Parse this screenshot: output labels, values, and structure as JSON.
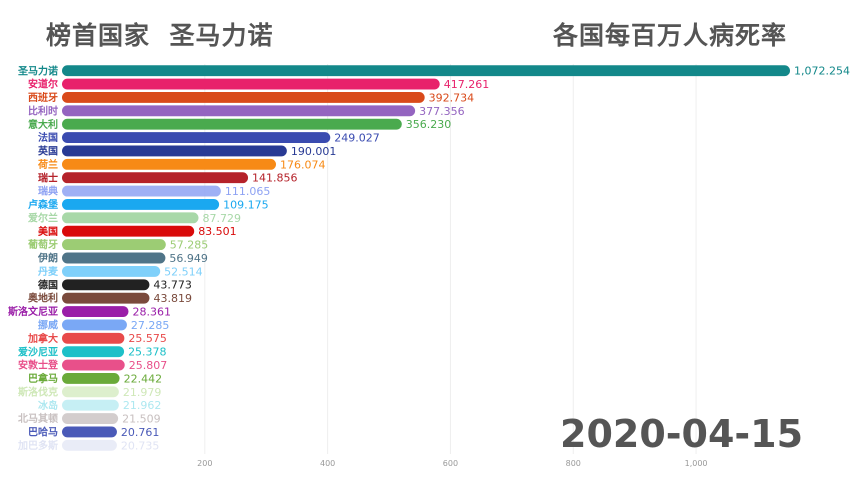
{
  "header": {
    "leader_label": "榜首国家",
    "leader_name": "圣马力诺",
    "chart_title": "各国每百万人病死率"
  },
  "date": "2020-04-15",
  "chart_data": {
    "type": "bar",
    "orientation": "horizontal",
    "title": "各国每百万人病死率",
    "xlabel": "",
    "ylabel": "",
    "x_ticks": [
      "200",
      "400",
      "600",
      "800",
      "1,000"
    ],
    "x_tick_values": [
      200,
      400,
      600,
      800,
      1000
    ],
    "grid": true,
    "bars": [
      {
        "name": "圣马力诺",
        "value": 1072.254,
        "label": "1,072.254",
        "color": "#13888a",
        "opacity": 1
      },
      {
        "name": "安道尔",
        "value": 417.261,
        "label": "417.261",
        "color": "#e8216b",
        "opacity": 1
      },
      {
        "name": "西班牙",
        "value": 392.734,
        "label": "392.734",
        "color": "#d94a1a",
        "opacity": 1
      },
      {
        "name": "比利时",
        "value": 377.356,
        "label": "377.356",
        "color": "#9464c0",
        "opacity": 1
      },
      {
        "name": "意大利",
        "value": 356.23,
        "label": "356.230",
        "color": "#4aaa4e",
        "opacity": 1
      },
      {
        "name": "法国",
        "value": 249.027,
        "label": "249.027",
        "color": "#3a4bb0",
        "opacity": 1
      },
      {
        "name": "英国",
        "value": 190.001,
        "label": "190.001",
        "color": "#283a94",
        "opacity": 1
      },
      {
        "name": "荷兰",
        "value": 176.074,
        "label": "176.074",
        "color": "#f78a16",
        "opacity": 1
      },
      {
        "name": "瑞士",
        "value": 141.856,
        "label": "141.856",
        "color": "#b5222a",
        "opacity": 1
      },
      {
        "name": "瑞典",
        "value": 111.065,
        "label": "111.065",
        "color": "#8ea2f3",
        "opacity": 0.85
      },
      {
        "name": "卢森堡",
        "value": 109.175,
        "label": "109.175",
        "color": "#1aa8f0",
        "opacity": 1
      },
      {
        "name": "爱尔兰",
        "value": 87.729,
        "label": "87.729",
        "color": "#a8d8a8",
        "opacity": 1
      },
      {
        "name": "美国",
        "value": 83.501,
        "label": "83.501",
        "color": "#d90a0a",
        "opacity": 1
      },
      {
        "name": "葡萄牙",
        "value": 57.285,
        "label": "57.285",
        "color": "#9ccc74",
        "opacity": 1
      },
      {
        "name": "伊朗",
        "value": 56.949,
        "label": "56.949",
        "color": "#4f7488",
        "opacity": 1
      },
      {
        "name": "丹麦",
        "value": 52.514,
        "label": "52.514",
        "color": "#7fd0fa",
        "opacity": 1
      },
      {
        "name": "德国",
        "value": 43.773,
        "label": "43.773",
        "color": "#222222",
        "opacity": 1
      },
      {
        "name": "奥地利",
        "value": 43.819,
        "label": "43.819",
        "color": "#7a4a3c",
        "opacity": 1
      },
      {
        "name": "斯洛文尼亚",
        "value": 28.361,
        "label": "28.361",
        "color": "#9a1ea8",
        "opacity": 1
      },
      {
        "name": "挪威",
        "value": 27.285,
        "label": "27.285",
        "color": "#7aa8f5",
        "opacity": 1
      },
      {
        "name": "加拿大",
        "value": 25.575,
        "label": "25.575",
        "color": "#e84a4a",
        "opacity": 1
      },
      {
        "name": "爱沙尼亚",
        "value": 25.378,
        "label": "25.378",
        "color": "#1ec0c8",
        "opacity": 1
      },
      {
        "name": "安敦士登",
        "value": 25.807,
        "label": "25.807",
        "color": "#e8508a",
        "opacity": 1
      },
      {
        "name": "巴拿马",
        "value": 22.442,
        "label": "22.442",
        "color": "#6aaa3a",
        "opacity": 1
      },
      {
        "name": "斯洛伐克",
        "value": 21.979,
        "label": "21.979",
        "color": "#cfe8b8",
        "opacity": 0.7
      },
      {
        "name": "冰岛",
        "value": 21.962,
        "label": "21.962",
        "color": "#aee8f0",
        "opacity": 0.7
      },
      {
        "name": "北马其顿",
        "value": 21.509,
        "label": "21.509",
        "color": "#c8c0c0",
        "opacity": 0.8
      },
      {
        "name": "巴哈马",
        "value": 20.761,
        "label": "20.761",
        "color": "#4a5ab8",
        "opacity": 1
      },
      {
        "name": "加巴多斯",
        "value": 20.735,
        "label": "20.735",
        "color": "#e0e4f4",
        "opacity": 0.7
      }
    ]
  }
}
